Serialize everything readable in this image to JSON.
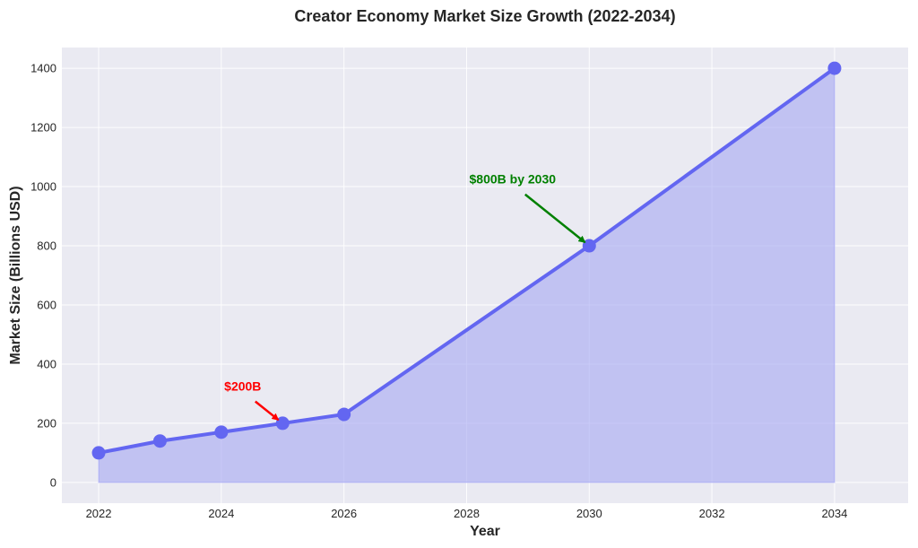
{
  "chart_data": {
    "type": "line",
    "title": "Creator Economy Market Size Growth (2022-2034)",
    "xlabel": "Year",
    "ylabel": "Market Size (Billions USD)",
    "x": [
      2022,
      2023,
      2024,
      2025,
      2026,
      2030,
      2034
    ],
    "series": [
      {
        "values": [
          100,
          140,
          170,
          200,
          230,
          800,
          1400
        ]
      }
    ],
    "xlim": [
      2021.4,
      2035.2
    ],
    "ylim": [
      -70,
      1470
    ],
    "xticks": [
      2022,
      2024,
      2026,
      2028,
      2030,
      2032,
      2034
    ],
    "yticks": [
      0,
      200,
      400,
      600,
      800,
      1000,
      1200,
      1400
    ],
    "grid": true,
    "area_fill": true,
    "colors": {
      "line": "#6366f1",
      "fill": "#a5a6f2",
      "background": "#eaeaf2",
      "grid": "#ffffff"
    },
    "annotations": [
      {
        "text": "$200B",
        "x": 2025,
        "y": 200,
        "text_x": 2024.35,
        "text_y": 310,
        "color": "#ff0000"
      },
      {
        "text": "$800B by 2030",
        "x": 2030,
        "y": 800,
        "text_x": 2028.75,
        "text_y": 1010,
        "color": "#008000"
      }
    ]
  }
}
